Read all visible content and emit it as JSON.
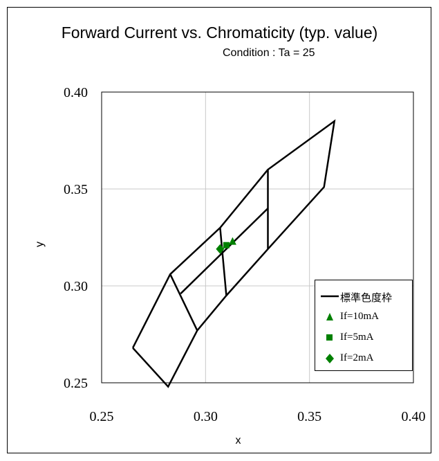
{
  "chart_data": {
    "type": "scatter",
    "title": "Forward Current vs. Chromaticity (typ. value)",
    "subtitle": "Condition : Ta = 25",
    "xlabel": "x",
    "ylabel": "y",
    "xlim": [
      0.25,
      0.4
    ],
    "ylim": [
      0.25,
      0.4
    ],
    "x_ticks": [
      "0.25",
      "0.30",
      "0.35",
      "0.40"
    ],
    "y_ticks": [
      "0.25",
      "0.30",
      "0.35",
      "0.40"
    ],
    "grid": true,
    "legend_position": "bottom-right",
    "frame": {
      "name": "標準色度枠",
      "color": "#000000",
      "polylines": [
        [
          [
            0.265,
            0.268
          ],
          [
            0.282,
            0.248
          ],
          [
            0.296,
            0.277
          ],
          [
            0.31,
            0.295
          ],
          [
            0.33,
            0.319
          ],
          [
            0.357,
            0.351
          ],
          [
            0.362,
            0.385
          ],
          [
            0.33,
            0.36
          ],
          [
            0.307,
            0.33
          ],
          [
            0.283,
            0.306
          ],
          [
            0.265,
            0.268
          ]
        ],
        [
          [
            0.283,
            0.306
          ],
          [
            0.296,
            0.277
          ]
        ],
        [
          [
            0.288,
            0.296
          ],
          [
            0.33,
            0.34
          ]
        ],
        [
          [
            0.307,
            0.33
          ],
          [
            0.31,
            0.295
          ]
        ],
        [
          [
            0.33,
            0.36
          ],
          [
            0.33,
            0.319
          ]
        ]
      ]
    },
    "series": [
      {
        "name": "If=10mA",
        "marker": "triangle",
        "color": "#008000",
        "points": [
          [
            0.313,
            0.323
          ]
        ]
      },
      {
        "name": "If=5mA",
        "marker": "square",
        "color": "#008000",
        "points": [
          [
            0.31,
            0.321
          ]
        ]
      },
      {
        "name": "If=2mA",
        "marker": "diamond",
        "color": "#008000",
        "points": [
          [
            0.307,
            0.319
          ]
        ]
      }
    ]
  }
}
